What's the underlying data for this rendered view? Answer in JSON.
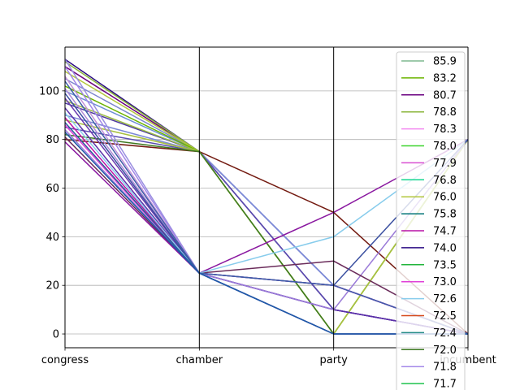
{
  "chart_data": {
    "type": "parallel_coordinates",
    "axes": [
      "congress",
      "chamber",
      "party",
      "incumbent"
    ],
    "ylim": [
      -5.67,
      118
    ],
    "yticks": [
      0,
      20,
      40,
      60,
      80,
      100
    ],
    "grid": true,
    "legend_position": "top-right",
    "legend": [
      {
        "label": "85.9",
        "color": "#7fb98f"
      },
      {
        "label": "83.2",
        "color": "#6cb500"
      },
      {
        "label": "80.7",
        "color": "#6a0080"
      },
      {
        "label": "78.8",
        "color": "#8ab53a"
      },
      {
        "label": "78.3",
        "color": "#f38af0"
      },
      {
        "label": "78.0",
        "color": "#3ed42f"
      },
      {
        "label": "77.9",
        "color": "#d94fd2"
      },
      {
        "label": "76.8",
        "color": "#14d68f"
      },
      {
        "label": "76.0",
        "color": "#b3c73c"
      },
      {
        "label": "75.8",
        "color": "#07777a"
      },
      {
        "label": "74.7",
        "color": "#b812a5"
      },
      {
        "label": "74.0",
        "color": "#2a0a82"
      },
      {
        "label": "73.5",
        "color": "#22b53b"
      },
      {
        "label": "73.0",
        "color": "#e040d8"
      },
      {
        "label": "72.6",
        "color": "#87ccec"
      },
      {
        "label": "72.5",
        "color": "#d6491a"
      },
      {
        "label": "72.4",
        "color": "#268c88"
      },
      {
        "label": "72.0",
        "color": "#3e7a22"
      },
      {
        "label": "71.8",
        "color": "#a387e8"
      },
      {
        "label": "71.7",
        "color": "#1fc24d"
      }
    ],
    "series_lines": [
      {
        "values": [
          113,
          75,
          20,
          0
        ],
        "color": "#2a0a82"
      },
      {
        "values": [
          110,
          75,
          10,
          0
        ],
        "color": "#6a0080"
      },
      {
        "values": [
          105,
          75,
          20,
          0
        ],
        "color": "#7d86cf"
      },
      {
        "values": [
          100,
          75,
          20,
          0
        ],
        "color": "#6d8ed4"
      },
      {
        "values": [
          95,
          75,
          10,
          0
        ],
        "color": "#4f3aa0"
      },
      {
        "values": [
          90,
          75,
          20,
          0
        ],
        "color": "#7d8ad8"
      },
      {
        "values": [
          85,
          75,
          10,
          0
        ],
        "color": "#5a4db0"
      },
      {
        "values": [
          80,
          75,
          50,
          0
        ],
        "color": "#731a10"
      },
      {
        "values": [
          112,
          75,
          0,
          80
        ],
        "color": "#8ab53a"
      },
      {
        "values": [
          108,
          75,
          0,
          80
        ],
        "color": "#b3c73c"
      },
      {
        "values": [
          102,
          75,
          0,
          80
        ],
        "color": "#6cb500"
      },
      {
        "values": [
          96,
          75,
          0,
          80
        ],
        "color": "#9bbd43"
      },
      {
        "values": [
          88,
          75,
          0,
          80
        ],
        "color": "#a8c040"
      },
      {
        "values": [
          82,
          75,
          0,
          0
        ],
        "color": "#3e7a22"
      },
      {
        "values": [
          113,
          25,
          0,
          0
        ],
        "color": "#9b8fe0"
      },
      {
        "values": [
          110,
          25,
          0,
          0
        ],
        "color": "#a387e8"
      },
      {
        "values": [
          106,
          25,
          0,
          0
        ],
        "color": "#c393d8"
      },
      {
        "values": [
          101,
          25,
          0,
          0
        ],
        "color": "#b08ad8"
      },
      {
        "values": [
          97,
          25,
          10,
          0
        ],
        "color": "#6a3ab0"
      },
      {
        "values": [
          93,
          25,
          10,
          0
        ],
        "color": "#5a2fa8"
      },
      {
        "values": [
          89,
          25,
          20,
          0
        ],
        "color": "#b812a5"
      },
      {
        "values": [
          86,
          25,
          20,
          0
        ],
        "color": "#e040d8"
      },
      {
        "values": [
          84,
          25,
          10,
          80
        ],
        "color": "#9a7ad8"
      },
      {
        "values": [
          81,
          25,
          30,
          0
        ],
        "color": "#6a2b5a"
      },
      {
        "values": [
          79,
          25,
          50,
          80
        ],
        "color": "#8a18a0"
      },
      {
        "values": [
          91,
          25,
          40,
          80
        ],
        "color": "#87ccec"
      },
      {
        "values": [
          99,
          25,
          20,
          80
        ],
        "color": "#3a4fa0"
      },
      {
        "values": [
          104,
          25,
          20,
          0
        ],
        "color": "#3e5fa8"
      },
      {
        "values": [
          87,
          25,
          0,
          0
        ],
        "color": "#2a5c9a"
      },
      {
        "values": [
          83,
          25,
          0,
          0
        ],
        "color": "#1e5aa8"
      }
    ]
  }
}
